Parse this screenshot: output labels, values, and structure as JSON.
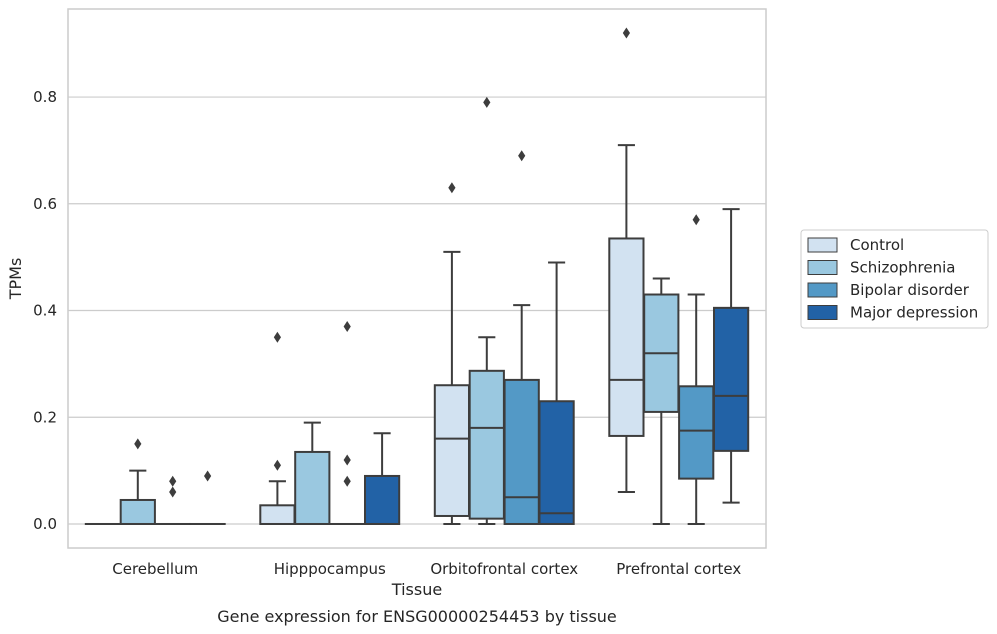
{
  "chart_data": {
    "type": "box",
    "title": "",
    "xlabel": "Tissue",
    "ylabel": "TPMs",
    "caption": "Gene expression for ENSG00000254453 by tissue",
    "categories": [
      "Cerebellum",
      "Hipppocampus",
      "Orbitofrontal cortex",
      "Prefrontal cortex"
    ],
    "ylim": [
      -0.045,
      0.965
    ],
    "yticks": [
      0.0,
      0.2,
      0.4,
      0.6,
      0.8
    ],
    "ytick_labels": [
      "0.0",
      "0.2",
      "0.4",
      "0.6",
      "0.8"
    ],
    "grid": "horizontal",
    "legend_position": "right",
    "series": [
      {
        "name": "Control",
        "color": "#d2e2f1",
        "boxes": [
          {
            "whislo": 0,
            "q1": 0,
            "med": 0,
            "q3": 0,
            "whishi": 0,
            "fliers": []
          },
          {
            "whislo": 0,
            "q1": 0,
            "med": 0,
            "q3": 0.035,
            "whishi": 0.08,
            "fliers": [
              0.11,
              0.35
            ]
          },
          {
            "whislo": 0,
            "q1": 0.015,
            "med": 0.16,
            "q3": 0.26,
            "whishi": 0.51,
            "fliers": [
              0.63
            ]
          },
          {
            "whislo": 0.06,
            "q1": 0.165,
            "med": 0.27,
            "q3": 0.535,
            "whishi": 0.71,
            "fliers": [
              0.92
            ]
          }
        ]
      },
      {
        "name": "Schizophrenia",
        "color": "#9ac8e0",
        "boxes": [
          {
            "whislo": 0,
            "q1": 0,
            "med": 0,
            "q3": 0.045,
            "whishi": 0.1,
            "fliers": [
              0.15
            ]
          },
          {
            "whislo": 0,
            "q1": 0,
            "med": 0,
            "q3": 0.135,
            "whishi": 0.19,
            "fliers": []
          },
          {
            "whislo": 0,
            "q1": 0.01,
            "med": 0.18,
            "q3": 0.287,
            "whishi": 0.35,
            "fliers": [
              0.79
            ]
          },
          {
            "whislo": 0,
            "q1": 0.21,
            "med": 0.32,
            "q3": 0.43,
            "whishi": 0.46,
            "fliers": []
          }
        ]
      },
      {
        "name": "Bipolar disorder",
        "color": "#5399c6",
        "boxes": [
          {
            "whislo": 0,
            "q1": 0,
            "med": 0,
            "q3": 0,
            "whishi": 0,
            "fliers": [
              0.06,
              0.08
            ]
          },
          {
            "whislo": 0,
            "q1": 0,
            "med": 0,
            "q3": 0,
            "whishi": 0,
            "fliers": [
              0.08,
              0.12,
              0.37
            ]
          },
          {
            "whislo": 0,
            "q1": 0,
            "med": 0.05,
            "q3": 0.27,
            "whishi": 0.41,
            "fliers": [
              0.69
            ]
          },
          {
            "whislo": 0,
            "q1": 0.085,
            "med": 0.175,
            "q3": 0.258,
            "whishi": 0.43,
            "fliers": [
              0.57
            ]
          }
        ]
      },
      {
        "name": "Major depression",
        "color": "#2262a6",
        "boxes": [
          {
            "whislo": 0,
            "q1": 0,
            "med": 0,
            "q3": 0,
            "whishi": 0,
            "fliers": [
              0.09
            ]
          },
          {
            "whislo": 0,
            "q1": 0,
            "med": 0,
            "q3": 0.09,
            "whishi": 0.17,
            "fliers": []
          },
          {
            "whislo": 0,
            "q1": 0,
            "med": 0.02,
            "q3": 0.23,
            "whishi": 0.49,
            "fliers": []
          },
          {
            "whislo": 0.04,
            "q1": 0.137,
            "med": 0.24,
            "q3": 0.405,
            "whishi": 0.59,
            "fliers": []
          }
        ]
      }
    ]
  }
}
